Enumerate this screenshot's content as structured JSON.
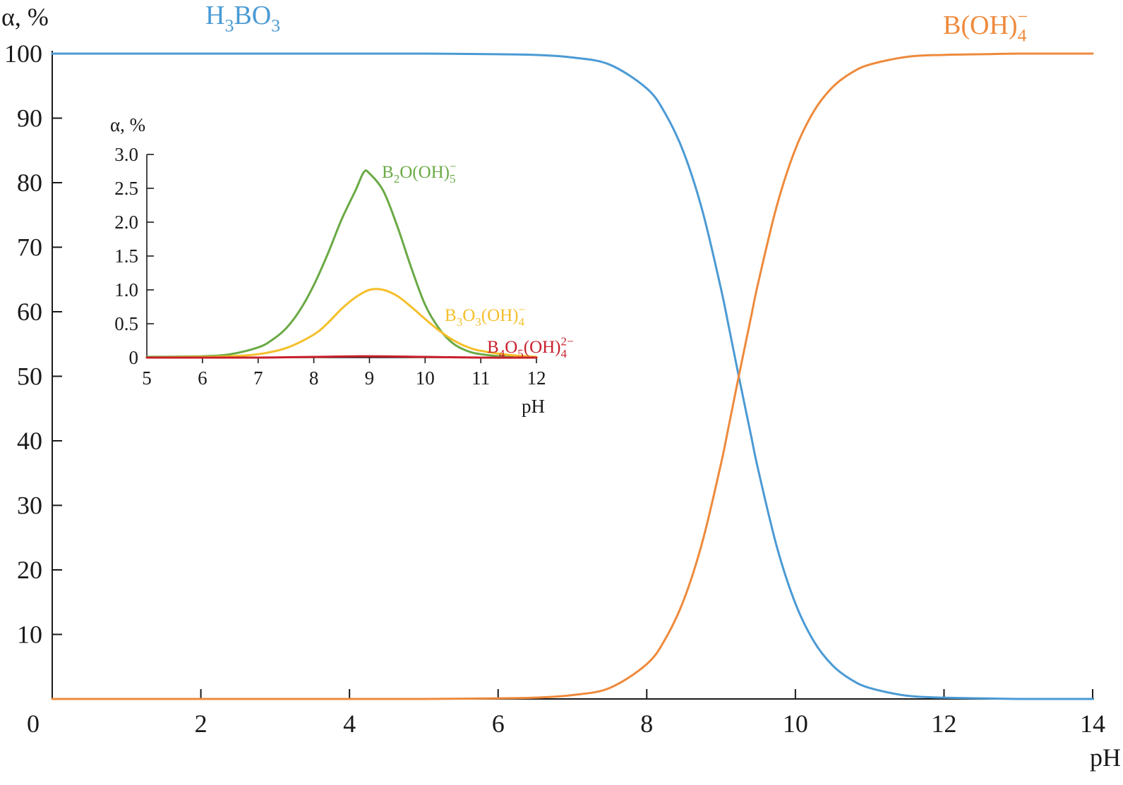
{
  "chart_data": [
    {
      "type": "line",
      "role": "main",
      "xlabel": "pH",
      "ylabel": "α, %",
      "xlim": [
        0,
        14
      ],
      "ylim": [
        0,
        100
      ],
      "x_ticks": [
        0,
        2,
        4,
        6,
        8,
        10,
        12,
        14
      ],
      "y_ticks": [
        10,
        20,
        30,
        40,
        50,
        60,
        70,
        80,
        90,
        100
      ],
      "x_tick_labels": [
        "0",
        "2",
        "4",
        "6",
        "8",
        "10",
        "12",
        "14"
      ],
      "y_tick_labels": [
        "10",
        "20",
        "30",
        "40",
        "50",
        "60",
        "70",
        "80",
        "90",
        "100"
      ],
      "grid": false,
      "series": [
        {
          "name": "H3BO3",
          "label_parts": [
            {
              "t": "H",
              "s": "n"
            },
            {
              "t": "3",
              "s": "sub"
            },
            {
              "t": "BO",
              "s": "n"
            },
            {
              "t": "3",
              "s": "sub"
            }
          ],
          "color": "#4a9ad4",
          "x": [
            0,
            1,
            2,
            3,
            4,
            5,
            6,
            6.5,
            7,
            7.5,
            8,
            8.25,
            8.5,
            8.75,
            9,
            9.1,
            9.24,
            9.4,
            9.5,
            9.75,
            10,
            10.25,
            10.5,
            10.75,
            11,
            11.5,
            12,
            12.5,
            13,
            14
          ],
          "y": [
            100,
            100,
            100,
            100,
            100,
            100,
            99.9,
            99.8,
            99.4,
            98.3,
            94.6,
            90.7,
            84.6,
            75.6,
            63.5,
            57.9,
            49.9,
            41.0,
            35.5,
            23.6,
            14.8,
            8.9,
            5.2,
            3.0,
            1.7,
            0.5,
            0.2,
            0.1,
            0,
            0
          ]
        },
        {
          "name": "B(OH)4−",
          "label_parts": [
            {
              "t": "B(OH)",
              "s": "n"
            },
            {
              "t": "4",
              "s": "sub"
            },
            {
              "t": "−",
              "s": "sup"
            }
          ],
          "color": "#ee8a3c",
          "x": [
            0,
            1,
            2,
            3,
            4,
            5,
            6,
            6.5,
            7,
            7.5,
            8,
            8.25,
            8.5,
            8.75,
            9,
            9.1,
            9.24,
            9.4,
            9.5,
            9.75,
            10,
            10.25,
            10.5,
            10.75,
            11,
            11.5,
            12,
            12.5,
            13,
            14
          ],
          "y": [
            0,
            0,
            0,
            0,
            0,
            0,
            0.1,
            0.2,
            0.6,
            1.7,
            5.4,
            9.3,
            15.4,
            24.4,
            36.5,
            42.1,
            50.1,
            59.0,
            64.5,
            76.4,
            85.2,
            91.1,
            94.8,
            97.0,
            98.3,
            99.5,
            99.8,
            99.9,
            100,
            100
          ]
        }
      ]
    },
    {
      "type": "line",
      "role": "inset",
      "xlabel": "pH",
      "ylabel": "α, %",
      "xlim": [
        5,
        12
      ],
      "ylim": [
        0,
        3.0
      ],
      "x_ticks": [
        5,
        6,
        7,
        8,
        9,
        10,
        11,
        12
      ],
      "y_ticks": [
        0,
        0.5,
        1.0,
        1.5,
        2.0,
        2.5,
        3.0
      ],
      "x_tick_labels": [
        "5",
        "6",
        "7",
        "8",
        "9",
        "10",
        "11",
        "12"
      ],
      "y_tick_labels": [
        "0",
        "0.5",
        "1.0",
        "1.5",
        "2.0",
        "2.5",
        "3.0"
      ],
      "grid": false,
      "series": [
        {
          "name": "B2O(OH)5−",
          "label_parts": [
            {
              "t": "B",
              "s": "n"
            },
            {
              "t": "2",
              "s": "sub"
            },
            {
              "t": "O(OH)",
              "s": "n"
            },
            {
              "t": "5",
              "s": "sub"
            },
            {
              "t": "−",
              "s": "sup"
            }
          ],
          "color": "#6aaa45",
          "x": [
            5,
            6,
            6.5,
            7,
            7.25,
            7.5,
            7.75,
            8,
            8.25,
            8.5,
            8.75,
            8.9,
            9,
            9.25,
            9.5,
            9.75,
            10,
            10.25,
            10.5,
            10.75,
            11,
            11.5,
            12
          ],
          "y": [
            0.01,
            0.02,
            0.05,
            0.15,
            0.26,
            0.43,
            0.7,
            1.07,
            1.53,
            2.04,
            2.47,
            2.74,
            2.72,
            2.46,
            1.94,
            1.33,
            0.78,
            0.43,
            0.21,
            0.1,
            0.05,
            0.01,
            0.0
          ]
        },
        {
          "name": "B3O3(OH)4−",
          "label_parts": [
            {
              "t": "B",
              "s": "n"
            },
            {
              "t": "3",
              "s": "sub"
            },
            {
              "t": "O",
              "s": "n"
            },
            {
              "t": "3",
              "s": "sub"
            },
            {
              "t": "(OH)",
              "s": "n"
            },
            {
              "t": "4",
              "s": "sub"
            },
            {
              "t": "−",
              "s": "sup"
            }
          ],
          "color": "#f5bf2a",
          "x": [
            5,
            6,
            6.5,
            7,
            7.5,
            8,
            8.25,
            8.5,
            8.75,
            9,
            9.25,
            9.5,
            9.75,
            10,
            10.25,
            10.5,
            10.75,
            11,
            11.5,
            12
          ],
          "y": [
            0.0,
            0.01,
            0.02,
            0.05,
            0.14,
            0.34,
            0.51,
            0.72,
            0.89,
            1.0,
            1.0,
            0.91,
            0.75,
            0.57,
            0.4,
            0.26,
            0.16,
            0.1,
            0.04,
            0.01
          ]
        },
        {
          "name": "B4O5(OH)42−",
          "label_parts": [
            {
              "t": "B",
              "s": "n"
            },
            {
              "t": "4",
              "s": "sub"
            },
            {
              "t": "O",
              "s": "n"
            },
            {
              "t": "5",
              "s": "sub"
            },
            {
              "t": "(OH)",
              "s": "n"
            },
            {
              "t": "4",
              "s": "sub"
            },
            {
              "t": "2−",
              "s": "sup"
            }
          ],
          "color": "#c8202b",
          "x": [
            5,
            6,
            7,
            8,
            9,
            10,
            11,
            12
          ],
          "y": [
            0,
            0,
            0,
            0.01,
            0.02,
            0.01,
            0,
            0
          ]
        }
      ]
    }
  ]
}
